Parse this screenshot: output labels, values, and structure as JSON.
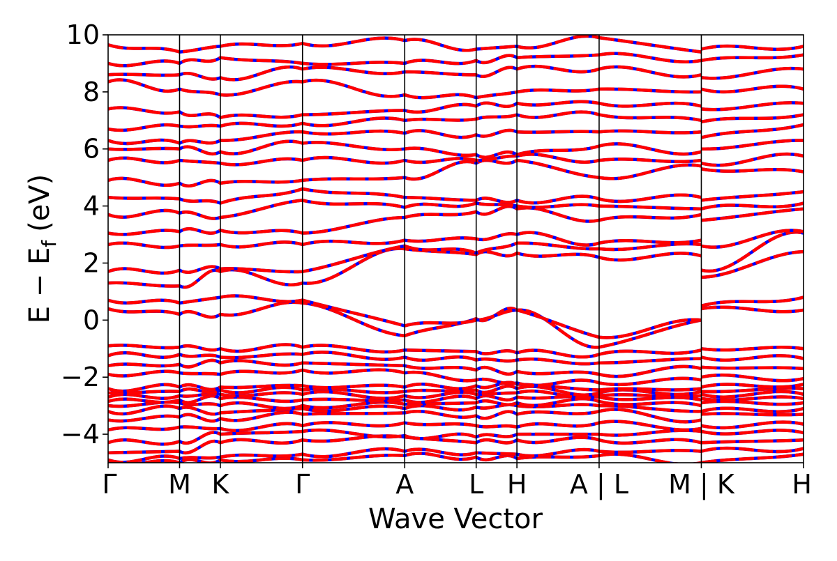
{
  "chart_data": {
    "type": "line",
    "xlabel": "Wave Vector",
    "ylabel": "E − E",
    "ylabel_sub": "f",
    "ylabel_unit": "(eV)",
    "ylim": [
      -5,
      10
    ],
    "yticks": [
      {
        "value": -4,
        "label": "−4"
      },
      {
        "value": -2,
        "label": "−2"
      },
      {
        "value": 0,
        "label": "0"
      },
      {
        "value": 2,
        "label": "2"
      },
      {
        "value": 4,
        "label": "4"
      },
      {
        "value": 6,
        "label": "6"
      },
      {
        "value": 8,
        "label": "8"
      },
      {
        "value": 10,
        "label": "10"
      }
    ],
    "kpath_segments": [
      {
        "points": [
          "Γ",
          "M",
          "K",
          "Γ",
          "A",
          "L",
          "H",
          "A"
        ],
        "k": [
          0.0,
          1.0,
          1.57,
          2.72,
          4.15,
          5.15,
          5.72,
          6.87
        ]
      },
      {
        "points": [
          "L",
          "M"
        ],
        "k": [
          6.87,
          8.3
        ]
      },
      {
        "points": [
          "K",
          "H"
        ],
        "k": [
          8.3,
          9.73
        ]
      }
    ],
    "xtick_labels": [
      {
        "k": 0.0,
        "label": "Γ"
      },
      {
        "k": 1.0,
        "label": "M"
      },
      {
        "k": 1.57,
        "label": "K"
      },
      {
        "k": 2.72,
        "label": "Γ"
      },
      {
        "k": 4.15,
        "label": "A"
      },
      {
        "k": 5.15,
        "label": "L"
      },
      {
        "k": 5.72,
        "label": "H"
      },
      {
        "k": 6.87,
        "label": "A | L"
      },
      {
        "k": 8.3,
        "label": "M | K"
      },
      {
        "k": 9.73,
        "label": "H"
      }
    ],
    "xlim": [
      0.0,
      9.73
    ],
    "vlines_at": [
      1.0,
      1.57,
      2.72,
      4.15,
      5.15,
      5.72,
      6.87,
      8.3
    ],
    "series": [
      {
        "color": "#0000ff",
        "linestyle": "solid"
      },
      {
        "color": "#ff0000",
        "linestyle": "dashed"
      }
    ],
    "band_energies_at_nodes": [
      [
        -5.0,
        -5.0,
        -4.9,
        -4.9,
        -4.75,
        -4.8,
        -4.85,
        -4.75,
        -5.0,
        -5.0,
        -4.7
      ],
      [
        -4.9,
        -4.85,
        -4.8,
        -4.7,
        -4.6,
        -4.65,
        -4.7,
        -4.6,
        -4.6,
        -4.6,
        -4.5
      ],
      [
        -4.65,
        -4.6,
        -4.3,
        -4.2,
        -4.1,
        -4.3,
        -4.2,
        -4.2,
        -4.3,
        -4.3,
        -4.2
      ],
      [
        -4.3,
        -4.25,
        -4.0,
        -3.9,
        -4.05,
        -4.1,
        -4.0,
        -4.0,
        -3.9,
        -3.9,
        -3.95
      ],
      [
        -3.85,
        -3.75,
        -3.8,
        -3.7,
        -3.6,
        -3.7,
        -3.75,
        -3.6,
        -3.8,
        -3.7,
        -3.65
      ],
      [
        -3.5,
        -3.4,
        -3.45,
        -3.3,
        -3.25,
        -3.35,
        -3.3,
        -3.2,
        -3.5,
        -3.3,
        -3.3
      ],
      [
        -3.2,
        -3.1,
        -3.25,
        -3.1,
        -3.1,
        -3.05,
        -3.0,
        -3.0,
        -3.2,
        -3.2,
        -3.1
      ],
      [
        -3.0,
        -2.9,
        -3.0,
        -3.0,
        -2.95,
        -2.9,
        -2.9,
        -2.85,
        -3.0,
        -2.9,
        -2.9
      ],
      [
        -2.85,
        -2.8,
        -2.75,
        -2.8,
        -2.8,
        -2.75,
        -2.7,
        -2.7,
        -2.8,
        -2.75,
        -2.75
      ],
      [
        -2.7,
        -2.65,
        -2.6,
        -2.6,
        -2.65,
        -2.6,
        -2.55,
        -2.65,
        -2.65,
        -2.6,
        -2.6
      ],
      [
        -2.55,
        -2.5,
        -2.45,
        -2.45,
        -2.5,
        -2.45,
        -2.4,
        -2.55,
        -2.5,
        -2.5,
        -2.4
      ],
      [
        -2.4,
        -2.35,
        -2.35,
        -2.3,
        -2.35,
        -2.3,
        -2.25,
        -2.45,
        -2.4,
        -2.35,
        -2.25
      ],
      [
        -1.9,
        -1.85,
        -1.9,
        -1.75,
        -1.85,
        -2.1,
        -2.2,
        -2.2,
        -2.1,
        -2.0,
        -2.05
      ],
      [
        -1.6,
        -1.55,
        -1.5,
        -1.5,
        -1.6,
        -1.75,
        -1.8,
        -1.9,
        -1.7,
        -1.65,
        -1.7
      ],
      [
        -1.25,
        -1.2,
        -1.3,
        -1.2,
        -1.3,
        -1.4,
        -1.4,
        -1.5,
        -1.35,
        -1.3,
        -1.35
      ],
      [
        -0.9,
        -0.95,
        -1.0,
        -0.95,
        -1.05,
        -1.1,
        -1.15,
        -1.2,
        -1.05,
        -1.0,
        -1.0
      ],
      [
        0.4,
        0.2,
        0.2,
        0.6,
        -0.55,
        0.05,
        0.35,
        -0.95,
        0.0,
        0.4,
        0.35
      ],
      [
        0.7,
        0.6,
        0.8,
        0.7,
        -0.2,
        0.0,
        0.35,
        -0.6,
        0.0,
        0.5,
        0.8
      ],
      [
        1.3,
        1.2,
        1.7,
        1.3,
        2.5,
        2.3,
        2.35,
        2.2,
        2.25,
        1.5,
        2.4
      ],
      [
        1.7,
        1.75,
        1.8,
        1.7,
        2.6,
        2.35,
        2.7,
        2.5,
        2.65,
        1.75,
        3.05
      ],
      [
        2.65,
        2.6,
        2.65,
        2.65,
        2.8,
        2.85,
        3.0,
        2.7,
        2.8,
        2.6,
        3.1
      ],
      [
        3.05,
        3.1,
        3.15,
        3.05,
        3.6,
        3.8,
        3.9,
        3.5,
        3.7,
        3.5,
        3.9
      ],
      [
        3.7,
        3.75,
        3.6,
        4.2,
        3.95,
        4.1,
        4.0,
        4.0,
        3.9,
        3.9,
        4.1
      ],
      [
        4.3,
        4.25,
        4.1,
        4.6,
        4.3,
        4.2,
        4.2,
        4.25,
        4.3,
        4.2,
        4.5
      ],
      [
        4.9,
        4.8,
        4.8,
        4.9,
        5.0,
        5.5,
        5.6,
        5.0,
        5.4,
        5.3,
        5.2
      ],
      [
        5.6,
        5.6,
        5.5,
        5.6,
        5.6,
        5.6,
        5.75,
        5.6,
        5.6,
        5.5,
        5.75
      ],
      [
        6.0,
        6.0,
        5.9,
        6.2,
        6.0,
        5.8,
        5.8,
        6.1,
        5.9,
        6.0,
        6.3
      ],
      [
        6.3,
        6.2,
        6.3,
        6.6,
        6.55,
        6.5,
        6.6,
        6.6,
        6.6,
        6.4,
        6.85
      ],
      [
        6.7,
        6.8,
        6.8,
        6.9,
        7.0,
        7.05,
        7.2,
        7.2,
        7.0,
        6.95,
        7.2
      ],
      [
        7.4,
        7.3,
        7.1,
        7.2,
        7.35,
        7.5,
        7.6,
        7.6,
        7.5,
        7.4,
        7.6
      ],
      [
        8.35,
        8.1,
        7.9,
        8.35,
        7.9,
        7.8,
        8.0,
        8.1,
        8.0,
        8.1,
        8.1
      ],
      [
        8.6,
        8.6,
        8.5,
        8.8,
        8.7,
        8.6,
        8.8,
        8.8,
        8.6,
        8.5,
        8.8
      ],
      [
        9.0,
        9.0,
        9.2,
        9.0,
        9.0,
        9.1,
        9.2,
        9.3,
        9.1,
        9.1,
        9.3
      ],
      [
        9.65,
        9.4,
        9.6,
        9.7,
        9.8,
        9.5,
        9.6,
        9.9,
        9.4,
        9.5,
        9.6
      ]
    ]
  }
}
